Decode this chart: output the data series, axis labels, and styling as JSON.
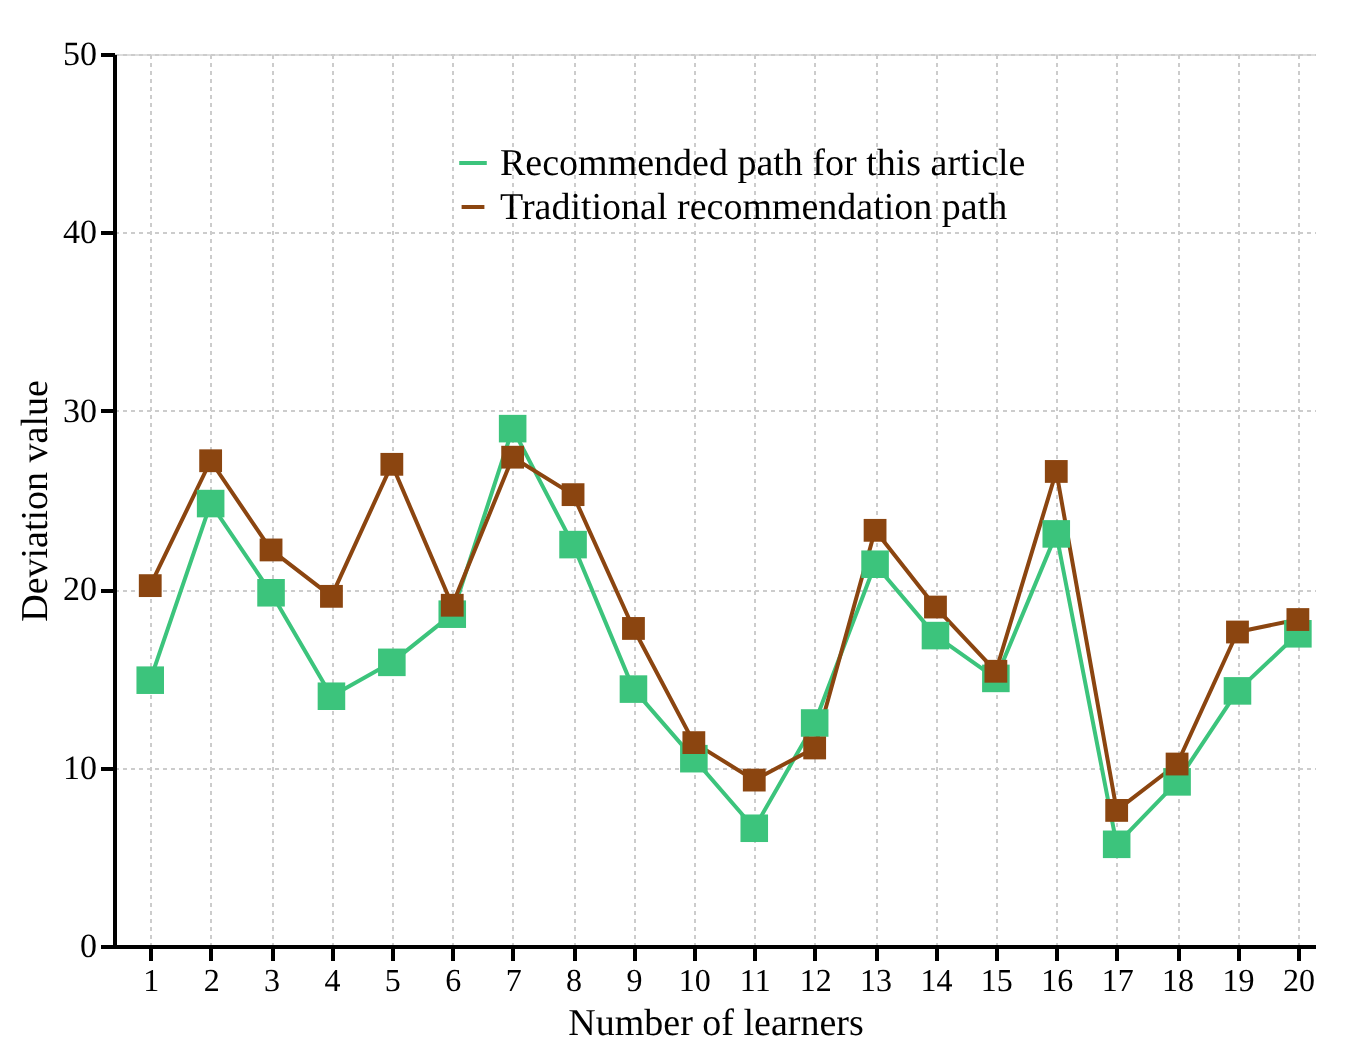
{
  "chart_data": {
    "type": "line",
    "xlabel": "Number of learners",
    "ylabel": "Deviation value",
    "x": [
      1,
      2,
      3,
      4,
      5,
      6,
      7,
      8,
      9,
      10,
      11,
      12,
      13,
      14,
      15,
      16,
      17,
      18,
      19,
      20
    ],
    "series": [
      {
        "name": "Recommended path for this article",
        "color": "#3cc47c",
        "values": [
          14.9,
          24.8,
          19.8,
          14.0,
          15.9,
          18.6,
          29.0,
          22.5,
          14.4,
          10.5,
          6.6,
          12.5,
          21.4,
          17.4,
          15.0,
          23.1,
          5.7,
          9.2,
          14.3,
          17.5
        ]
      },
      {
        "name": "Traditional recommendation path",
        "color": "#8b4510",
        "values": [
          20.2,
          27.2,
          22.2,
          19.6,
          27.0,
          19.1,
          27.4,
          25.3,
          17.8,
          11.4,
          9.3,
          11.1,
          23.3,
          19.0,
          15.4,
          26.6,
          7.6,
          10.2,
          17.6,
          18.3
        ]
      }
    ],
    "xlim": [
      0.4,
      20.3
    ],
    "xticks": [
      1,
      2,
      3,
      4,
      5,
      6,
      7,
      8,
      9,
      10,
      11,
      12,
      13,
      14,
      15,
      16,
      17,
      18,
      19,
      20
    ],
    "ylim": [
      0,
      50
    ],
    "yticks": [
      0,
      10,
      20,
      30,
      40,
      50
    ],
    "grid": true,
    "legend": "top",
    "marker": "square",
    "line_style": "solid"
  }
}
